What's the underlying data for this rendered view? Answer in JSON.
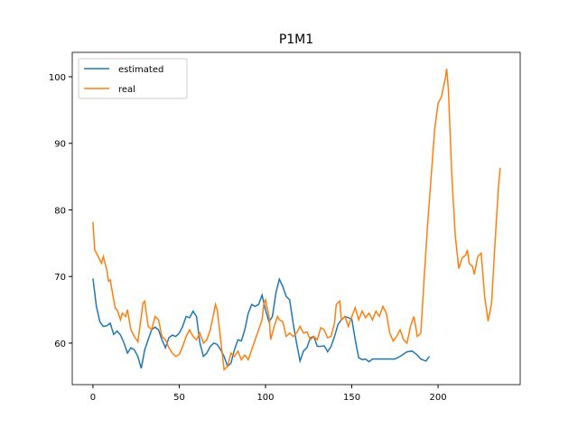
{
  "chart_data": {
    "type": "line",
    "title": "P1M1",
    "xlim": [
      -12,
      247.6
    ],
    "ylim": [
      53.76,
      103.66
    ],
    "xticks": [
      0,
      50,
      100,
      150,
      200
    ],
    "yticks": [
      60,
      70,
      80,
      90,
      100
    ],
    "legend": "upper left",
    "series": [
      {
        "name": "estimated",
        "color": "#1f77b4",
        "x": [
          0,
          2,
          4,
          6,
          8,
          10,
          12,
          14,
          16,
          18,
          20,
          22,
          24,
          26,
          28,
          30,
          32,
          34,
          36,
          38,
          40,
          42,
          44,
          46,
          48,
          50,
          52,
          54,
          56,
          58,
          60,
          62,
          64,
          66,
          68,
          70,
          72,
          74,
          76,
          78,
          80,
          82,
          84,
          86,
          88,
          90,
          92,
          94,
          96,
          98,
          100,
          102,
          104,
          106,
          108,
          110,
          112,
          114,
          116,
          118,
          120,
          122,
          124,
          126,
          128,
          130,
          132,
          134,
          136,
          138,
          140,
          142,
          144,
          146,
          148,
          150,
          152,
          154,
          156,
          158,
          160,
          162,
          165,
          170,
          175,
          178,
          182,
          185,
          188,
          190,
          193,
          195
        ],
        "values": [
          69.7,
          65.5,
          63.2,
          62.5,
          62.6,
          63,
          61.3,
          61.8,
          61.2,
          60,
          58.5,
          59.3,
          59,
          58,
          56.2,
          59,
          60.5,
          62,
          62.4,
          62,
          60.5,
          59.3,
          60.8,
          61.2,
          61,
          61.5,
          62.5,
          64,
          63.8,
          64.8,
          64,
          60,
          58,
          58.5,
          59.5,
          60,
          59.8,
          59,
          58,
          56.5,
          57,
          59,
          60.5,
          60.3,
          62,
          64.5,
          65.8,
          65.5,
          65.8,
          67.2,
          65,
          63.2,
          64,
          67.5,
          69.6,
          68.5,
          67,
          66.5,
          63,
          60,
          57.3,
          58.8,
          59.3,
          60.8,
          61,
          59.5,
          59.5,
          59.6,
          58.7,
          59.5,
          61,
          62.8,
          63.5,
          64,
          63.8,
          63.6,
          60.5,
          57.8,
          57.5,
          57.6,
          57.2,
          57.6,
          57.6,
          57.6,
          57.6,
          58,
          58.7,
          58.8,
          58.2,
          57.6,
          57.3,
          58
        ]
      },
      {
        "name": "real",
        "color": "#ff7f0e",
        "x": [
          0,
          1,
          3,
          5,
          6,
          8,
          9,
          10,
          12,
          13,
          14,
          16,
          17,
          19,
          20,
          22,
          24,
          26,
          28,
          29,
          30,
          32,
          34,
          36,
          38,
          40,
          42,
          44,
          46,
          48,
          50,
          52,
          54,
          56,
          58,
          60,
          62,
          64,
          66,
          68,
          70,
          71,
          72,
          74,
          76,
          78,
          80,
          82,
          84,
          86,
          88,
          90,
          92,
          94,
          96,
          98,
          99,
          100,
          102,
          103,
          105,
          107,
          108,
          110,
          112,
          114,
          116,
          118,
          120,
          122,
          124,
          126,
          128,
          130,
          132,
          134,
          136,
          138,
          140,
          141,
          143,
          144,
          146,
          148,
          150,
          152,
          154,
          156,
          158,
          160,
          162,
          164,
          166,
          168,
          170,
          172,
          174,
          176,
          178,
          180,
          182,
          184,
          186,
          188,
          190,
          192,
          194,
          196,
          198,
          200,
          202,
          204,
          205,
          206,
          208,
          210,
          212,
          214,
          216,
          217,
          218,
          220,
          221,
          223,
          225,
          227,
          229,
          231,
          233,
          235,
          236
        ],
        "values": [
          78.2,
          74,
          73,
          72,
          73,
          71,
          69.3,
          69.5,
          66.5,
          65.2,
          65,
          63.5,
          64.5,
          64,
          65,
          62,
          61,
          60.2,
          64,
          66,
          66.3,
          62.5,
          62,
          64,
          63.5,
          61,
          60.5,
          59.3,
          58.5,
          58,
          58.3,
          59.5,
          61,
          62,
          61,
          60.5,
          61.5,
          60,
          60.5,
          62,
          64.5,
          65.8,
          65,
          60.5,
          56,
          56.5,
          58.5,
          58,
          58.8,
          57.5,
          58.2,
          57.5,
          59,
          60.5,
          62,
          63.5,
          65.8,
          66.5,
          64,
          60.5,
          62.5,
          64,
          63.5,
          63.2,
          61,
          61.5,
          61,
          61.5,
          62.5,
          61.5,
          61.7,
          60.5,
          61,
          60.5,
          62.3,
          62,
          60.8,
          61,
          63,
          65.8,
          66.3,
          63.5,
          64,
          62.5,
          64,
          65.3,
          63.5,
          64.8,
          63.8,
          64.5,
          63.5,
          64.8,
          64,
          65.5,
          64.5,
          61.5,
          60.3,
          61,
          62,
          60.5,
          60,
          62.5,
          64,
          61,
          61.5,
          70,
          78,
          85,
          92,
          96,
          97,
          99.5,
          101.2,
          98,
          85,
          76,
          71.2,
          72.8,
          73.2,
          74,
          72,
          71.5,
          70.3,
          73,
          73.5,
          67,
          63.3,
          66,
          75,
          83.5,
          86.3
        ]
      }
    ]
  }
}
